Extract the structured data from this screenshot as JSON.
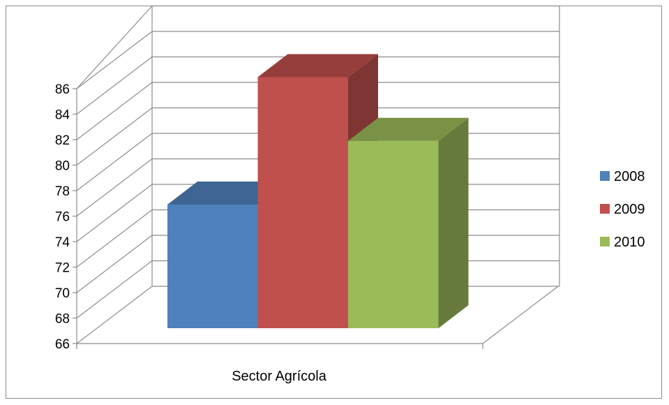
{
  "chart_data": {
    "type": "bar",
    "categories": [
      "Sector Agrícola"
    ],
    "series": [
      {
        "name": "2008",
        "values": [
          75.7
        ],
        "color": "#4F81BD"
      },
      {
        "name": "2009",
        "values": [
          85.7
        ],
        "color": "#C0504D"
      },
      {
        "name": "2010",
        "values": [
          80.7
        ],
        "color": "#9BBB59"
      }
    ],
    "ylim": [
      66,
      86
    ],
    "yticks": [
      "66",
      "68",
      "70",
      "72",
      "74",
      "76",
      "78",
      "80",
      "82",
      "84",
      "86"
    ],
    "grid": true,
    "legend_position": "right",
    "style": "3d-clustered-column"
  }
}
